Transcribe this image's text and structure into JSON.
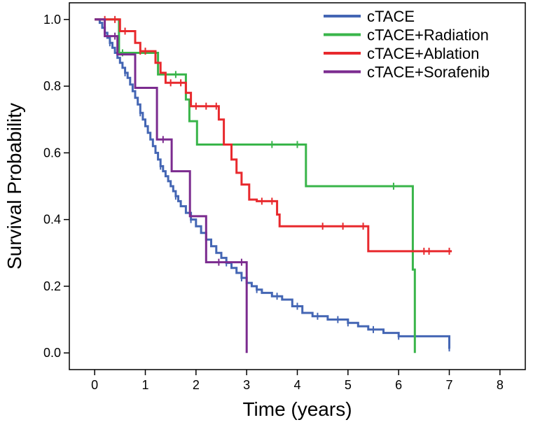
{
  "chart_data": {
    "type": "line",
    "subtype": "kaplan-meier step curves",
    "xlabel": "Time (years)",
    "ylabel": "Survival Probability",
    "xlim": [
      -0.5,
      8.5
    ],
    "ylim": [
      -0.05,
      1.05
    ],
    "xticks": [
      "0",
      "1",
      "2",
      "3",
      "4",
      "5",
      "6",
      "7",
      "8"
    ],
    "yticks": [
      "0.0",
      "0.2",
      "0.4",
      "0.6",
      "0.8",
      "1.0"
    ],
    "grid": false,
    "legend_position": "top-right",
    "series": [
      {
        "name": "cTACE",
        "color": "#4466b4",
        "steps": [
          [
            0.0,
            1.0
          ],
          [
            0.1,
            0.99
          ],
          [
            0.15,
            0.975
          ],
          [
            0.2,
            0.96
          ],
          [
            0.25,
            0.945
          ],
          [
            0.3,
            0.93
          ],
          [
            0.35,
            0.915
          ],
          [
            0.4,
            0.9
          ],
          [
            0.45,
            0.885
          ],
          [
            0.5,
            0.87
          ],
          [
            0.55,
            0.855
          ],
          [
            0.6,
            0.84
          ],
          [
            0.65,
            0.825
          ],
          [
            0.7,
            0.805
          ],
          [
            0.75,
            0.785
          ],
          [
            0.8,
            0.765
          ],
          [
            0.85,
            0.745
          ],
          [
            0.9,
            0.72
          ],
          [
            0.95,
            0.7
          ],
          [
            1.0,
            0.68
          ],
          [
            1.05,
            0.66
          ],
          [
            1.1,
            0.64
          ],
          [
            1.15,
            0.62
          ],
          [
            1.2,
            0.6
          ],
          [
            1.25,
            0.58
          ],
          [
            1.3,
            0.56
          ],
          [
            1.35,
            0.545
          ],
          [
            1.4,
            0.53
          ],
          [
            1.45,
            0.515
          ],
          [
            1.5,
            0.5
          ],
          [
            1.55,
            0.485
          ],
          [
            1.6,
            0.47
          ],
          [
            1.65,
            0.455
          ],
          [
            1.7,
            0.44
          ],
          [
            1.8,
            0.42
          ],
          [
            1.9,
            0.4
          ],
          [
            2.0,
            0.38
          ],
          [
            2.1,
            0.36
          ],
          [
            2.2,
            0.34
          ],
          [
            2.3,
            0.32
          ],
          [
            2.4,
            0.3
          ],
          [
            2.5,
            0.285
          ],
          [
            2.6,
            0.27
          ],
          [
            2.7,
            0.255
          ],
          [
            2.8,
            0.24
          ],
          [
            2.9,
            0.225
          ],
          [
            3.0,
            0.21
          ],
          [
            3.1,
            0.2
          ],
          [
            3.2,
            0.19
          ],
          [
            3.3,
            0.18
          ],
          [
            3.5,
            0.17
          ],
          [
            3.7,
            0.16
          ],
          [
            3.9,
            0.14
          ],
          [
            4.1,
            0.12
          ],
          [
            4.3,
            0.11
          ],
          [
            4.6,
            0.1
          ],
          [
            5.0,
            0.09
          ],
          [
            5.2,
            0.08
          ],
          [
            5.4,
            0.07
          ],
          [
            5.7,
            0.06
          ],
          [
            6.0,
            0.05
          ],
          [
            7.0,
            0.015
          ]
        ],
        "end": 7.02,
        "censor_x": [
          0.3,
          0.6,
          0.9,
          1.3,
          1.6,
          1.9,
          2.2,
          2.6,
          2.9,
          3.2,
          3.6,
          4.0,
          4.4,
          4.8,
          5.0,
          5.5,
          6.0,
          7.0
        ]
      },
      {
        "name": "cTACE+Radiation",
        "color": "#39b54a",
        "steps": [
          [
            0.0,
            1.0
          ],
          [
            0.48,
            0.9
          ],
          [
            1.25,
            0.835
          ],
          [
            1.8,
            0.76
          ],
          [
            1.87,
            0.695
          ],
          [
            2.02,
            0.625
          ],
          [
            4.17,
            0.5
          ],
          [
            6.28,
            0.25
          ],
          [
            6.32,
            0.0
          ]
        ],
        "end": 6.32,
        "censor_x": [
          0.55,
          1.6,
          3.5,
          4.0,
          5.9
        ]
      },
      {
        "name": "cTACE+Ablation",
        "color": "#e8292d",
        "steps": [
          [
            0.0,
            1.0
          ],
          [
            0.5,
            0.965
          ],
          [
            0.8,
            0.93
          ],
          [
            0.9,
            0.905
          ],
          [
            1.2,
            0.87
          ],
          [
            1.3,
            0.84
          ],
          [
            1.4,
            0.81
          ],
          [
            1.8,
            0.78
          ],
          [
            1.9,
            0.74
          ],
          [
            2.45,
            0.7
          ],
          [
            2.55,
            0.625
          ],
          [
            2.7,
            0.58
          ],
          [
            2.8,
            0.54
          ],
          [
            2.9,
            0.505
          ],
          [
            3.05,
            0.46
          ],
          [
            3.2,
            0.455
          ],
          [
            3.6,
            0.415
          ],
          [
            3.65,
            0.38
          ],
          [
            5.4,
            0.305
          ]
        ],
        "end": 7.05,
        "censor_x": [
          0.2,
          0.4,
          0.6,
          0.9,
          1.0,
          1.5,
          1.7,
          2.0,
          2.2,
          2.4,
          3.3,
          3.5,
          4.5,
          4.9,
          5.3,
          6.5,
          6.6,
          7.0
        ]
      },
      {
        "name": "cTACE+Sorafenib",
        "color": "#7b2b8f",
        "steps": [
          [
            0.0,
            1.0
          ],
          [
            0.2,
            0.95
          ],
          [
            0.45,
            0.895
          ],
          [
            0.8,
            0.795
          ],
          [
            1.23,
            0.64
          ],
          [
            1.52,
            0.545
          ],
          [
            1.88,
            0.41
          ],
          [
            2.2,
            0.272
          ],
          [
            3.0,
            0.0
          ]
        ],
        "end": 3.0,
        "censor_x": [
          0.4,
          1.35,
          2.45,
          2.9
        ]
      }
    ]
  }
}
